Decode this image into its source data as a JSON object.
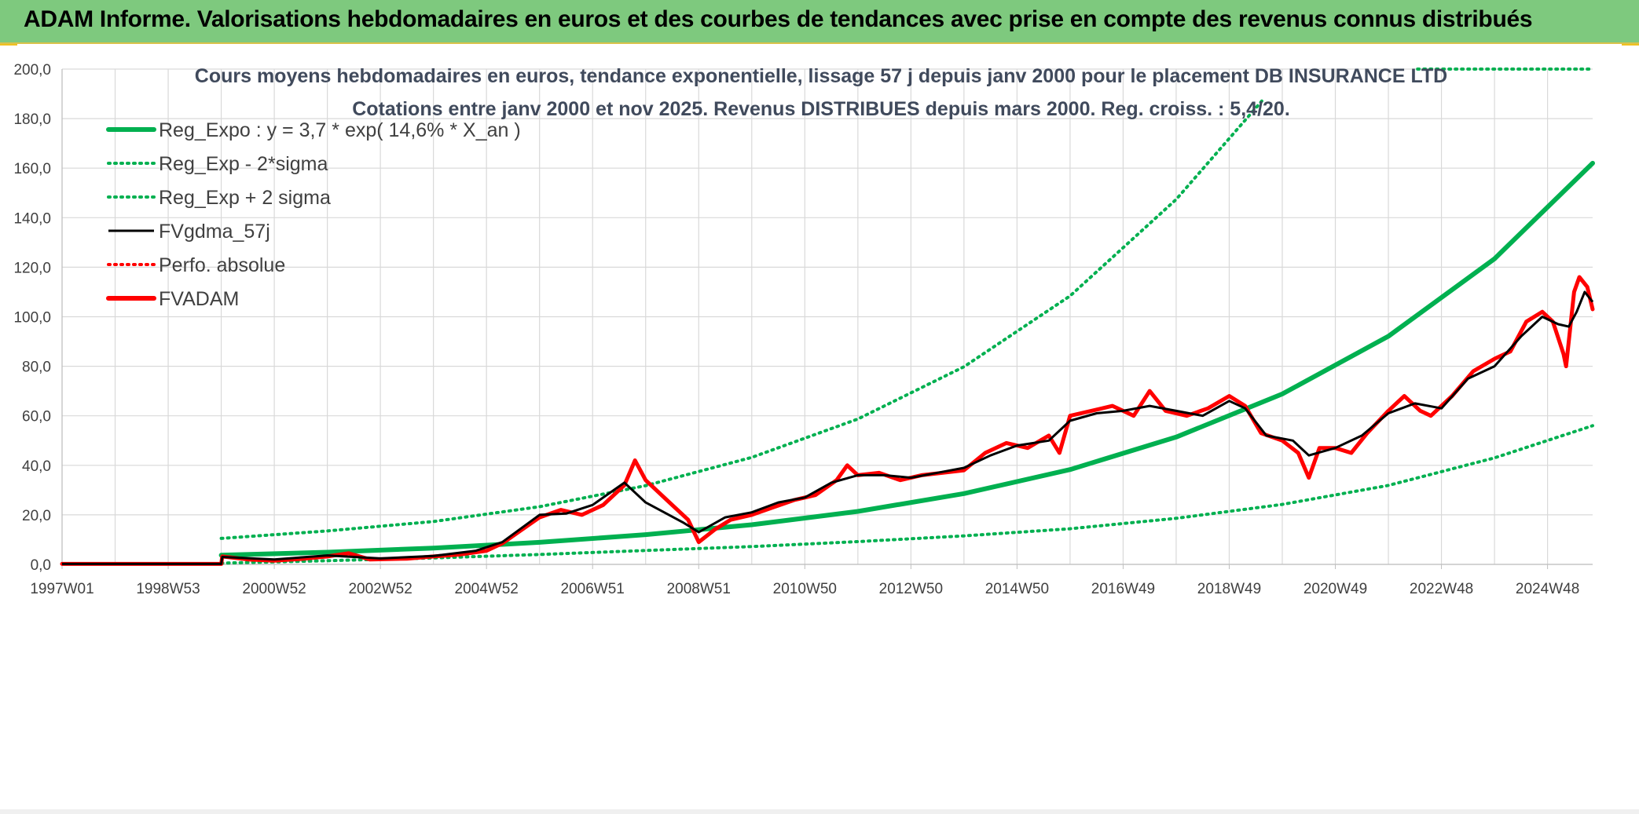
{
  "header": {
    "title": "ADAM Informe. Valorisations hebdomadaires en euros et des courbes de tendances avec prise en compte des revenus connus distribués"
  },
  "chart_data": {
    "type": "line",
    "title": "Cours moyens hebdomadaires en euros, tendance exponentielle, lissage 57 j depuis janv 2000 pour le placement DB INSURANCE LTD",
    "subtitle": "Cotations entre janv 2000 et nov 2025. Revenus DISTRIBUES depuis mars 2000. Reg. croiss. : 5,4/20.",
    "xlabel": "",
    "ylabel": "",
    "ylim": [
      0,
      200
    ],
    "xlim": [
      1997.0,
      2025.85
    ],
    "y_ticks": [
      "0,0",
      "20,0",
      "40,0",
      "60,0",
      "80,0",
      "100,0",
      "120,0",
      "140,0",
      "160,0",
      "180,0",
      "200,0"
    ],
    "x_ticks": [
      {
        "label": "1997W01",
        "x": 1997.0
      },
      {
        "label": "1998W53",
        "x": 1999.0
      },
      {
        "label": "2000W52",
        "x": 2001.0
      },
      {
        "label": "2002W52",
        "x": 2003.0
      },
      {
        "label": "2004W52",
        "x": 2005.0
      },
      {
        "label": "2006W51",
        "x": 2007.0
      },
      {
        "label": "2008W51",
        "x": 2009.0
      },
      {
        "label": "2010W50",
        "x": 2011.0
      },
      {
        "label": "2012W50",
        "x": 2013.0
      },
      {
        "label": "2014W50",
        "x": 2015.0
      },
      {
        "label": "2016W49",
        "x": 2017.0
      },
      {
        "label": "2018W49",
        "x": 2019.0
      },
      {
        "label": "2020W49",
        "x": 2021.0
      },
      {
        "label": "2022W48",
        "x": 2023.0
      },
      {
        "label": "2024W48",
        "x": 2025.0
      }
    ],
    "grid": true,
    "legend_position": "top-left",
    "series": [
      {
        "name": "Reg_Expo : y = 3,7 * exp( 14,6% *  X_an )",
        "style": "solid-thick",
        "color": "#00b050",
        "points": [
          [
            2000.0,
            3.7
          ],
          [
            2002.0,
            4.9
          ],
          [
            2004.0,
            6.6
          ],
          [
            2006.0,
            8.9
          ],
          [
            2008.0,
            12.0
          ],
          [
            2010.0,
            16.0
          ],
          [
            2012.0,
            21.4
          ],
          [
            2014.0,
            28.6
          ],
          [
            2016.0,
            38.3
          ],
          [
            2018.0,
            51.4
          ],
          [
            2020.0,
            68.8
          ],
          [
            2022.0,
            92.1
          ],
          [
            2024.0,
            123.4
          ],
          [
            2025.85,
            162.0
          ]
        ]
      },
      {
        "name": "Reg_Exp - 2*sigma",
        "style": "dotted",
        "color": "#00b050",
        "points": [
          [
            2000.0,
            0.5
          ],
          [
            2002.0,
            1.5
          ],
          [
            2004.0,
            2.6
          ],
          [
            2006.0,
            4.0
          ],
          [
            2008.0,
            5.6
          ],
          [
            2010.0,
            7.2
          ],
          [
            2012.0,
            9.2
          ],
          [
            2014.0,
            11.5
          ],
          [
            2016.0,
            14.4
          ],
          [
            2018.0,
            18.6
          ],
          [
            2020.0,
            24.2
          ],
          [
            2022.0,
            31.9
          ],
          [
            2024.0,
            43.0
          ],
          [
            2025.85,
            56.0
          ]
        ]
      },
      {
        "name": "Reg_Exp + 2 sigma",
        "style": "dotted",
        "color": "#00b050",
        "points": [
          [
            2000.0,
            10.5
          ],
          [
            2002.0,
            13.5
          ],
          [
            2004.0,
            17.3
          ],
          [
            2006.0,
            23.3
          ],
          [
            2008.0,
            31.8
          ],
          [
            2010.0,
            43.2
          ],
          [
            2012.0,
            58.7
          ],
          [
            2014.0,
            79.8
          ],
          [
            2016.0,
            108.4
          ],
          [
            2018.0,
            147.4
          ],
          [
            2019.65,
            188.0
          ]
        ],
        "plateau": {
          "value": 200,
          "from": 2022.55,
          "to": 2025.85
        }
      },
      {
        "name": "FVgdma_57j",
        "style": "solid",
        "color": "#000000",
        "points": [
          [
            1997.0,
            0.2
          ],
          [
            2000.0,
            0.2
          ],
          [
            2000.02,
            3.0
          ],
          [
            2001.0,
            2.0
          ],
          [
            2002.0,
            3.6
          ],
          [
            2003.0,
            2.4
          ],
          [
            2004.0,
            3.4
          ],
          [
            2004.8,
            5.5
          ],
          [
            2005.3,
            9.0
          ],
          [
            2006.0,
            20.0
          ],
          [
            2006.5,
            20.5
          ],
          [
            2007.0,
            24.0
          ],
          [
            2007.6,
            33.0
          ],
          [
            2008.0,
            25.0
          ],
          [
            2008.7,
            17.0
          ],
          [
            2009.0,
            13.0
          ],
          [
            2009.5,
            19.0
          ],
          [
            2010.0,
            21.0
          ],
          [
            2010.5,
            25.0
          ],
          [
            2011.0,
            27.0
          ],
          [
            2011.5,
            33.0
          ],
          [
            2012.0,
            36.0
          ],
          [
            2012.5,
            36.0
          ],
          [
            2013.0,
            35.0
          ],
          [
            2013.5,
            37.0
          ],
          [
            2014.0,
            39.0
          ],
          [
            2014.5,
            44.0
          ],
          [
            2015.0,
            48.0
          ],
          [
            2015.6,
            50.0
          ],
          [
            2016.0,
            58.0
          ],
          [
            2016.5,
            61.0
          ],
          [
            2017.0,
            62.0
          ],
          [
            2017.5,
            64.0
          ],
          [
            2018.0,
            62.0
          ],
          [
            2018.5,
            60.0
          ],
          [
            2019.0,
            66.0
          ],
          [
            2019.3,
            63.0
          ],
          [
            2019.7,
            52.0
          ],
          [
            2020.2,
            50.0
          ],
          [
            2020.5,
            44.0
          ],
          [
            2021.0,
            47.0
          ],
          [
            2021.5,
            52.0
          ],
          [
            2022.0,
            61.0
          ],
          [
            2022.5,
            65.0
          ],
          [
            2023.0,
            63.0
          ],
          [
            2023.5,
            75.0
          ],
          [
            2024.0,
            80.0
          ],
          [
            2024.5,
            92.0
          ],
          [
            2024.9,
            100.0
          ],
          [
            2025.2,
            97.0
          ],
          [
            2025.4,
            96.0
          ],
          [
            2025.55,
            102.0
          ],
          [
            2025.7,
            110.0
          ],
          [
            2025.85,
            106.0
          ]
        ]
      },
      {
        "name": "Perfo. absolue",
        "style": "dotted",
        "color": "#ff0000",
        "points": []
      },
      {
        "name": "FVADAM",
        "style": "solid-thick",
        "color": "#ff0000",
        "points": [
          [
            1997.0,
            0.2
          ],
          [
            2000.0,
            0.2
          ],
          [
            2000.02,
            3.2
          ],
          [
            2000.5,
            2.0
          ],
          [
            2001.0,
            1.5
          ],
          [
            2001.5,
            2.2
          ],
          [
            2002.0,
            3.2
          ],
          [
            2002.4,
            4.5
          ],
          [
            2002.8,
            2.0
          ],
          [
            2003.5,
            2.3
          ],
          [
            2004.0,
            3.2
          ],
          [
            2004.5,
            4.0
          ],
          [
            2005.0,
            5.5
          ],
          [
            2005.3,
            8.5
          ],
          [
            2005.6,
            13.0
          ],
          [
            2006.0,
            19.0
          ],
          [
            2006.4,
            22.0
          ],
          [
            2006.8,
            20.0
          ],
          [
            2007.2,
            24.0
          ],
          [
            2007.6,
            32.0
          ],
          [
            2007.8,
            42.0
          ],
          [
            2008.0,
            34.0
          ],
          [
            2008.4,
            26.0
          ],
          [
            2008.8,
            18.0
          ],
          [
            2009.0,
            9.0
          ],
          [
            2009.3,
            14.0
          ],
          [
            2009.6,
            18.0
          ],
          [
            2010.0,
            20.0
          ],
          [
            2010.4,
            23.0
          ],
          [
            2010.8,
            26.0
          ],
          [
            2011.2,
            28.0
          ],
          [
            2011.6,
            34.0
          ],
          [
            2011.8,
            40.0
          ],
          [
            2012.0,
            36.0
          ],
          [
            2012.4,
            37.0
          ],
          [
            2012.8,
            34.0
          ],
          [
            2013.2,
            36.0
          ],
          [
            2013.6,
            37.0
          ],
          [
            2014.0,
            38.0
          ],
          [
            2014.4,
            45.0
          ],
          [
            2014.8,
            49.0
          ],
          [
            2015.2,
            47.0
          ],
          [
            2015.6,
            52.0
          ],
          [
            2015.8,
            45.0
          ],
          [
            2016.0,
            60.0
          ],
          [
            2016.4,
            62.0
          ],
          [
            2016.8,
            64.0
          ],
          [
            2017.2,
            60.0
          ],
          [
            2017.5,
            70.0
          ],
          [
            2017.8,
            62.0
          ],
          [
            2018.2,
            60.0
          ],
          [
            2018.6,
            63.0
          ],
          [
            2019.0,
            68.0
          ],
          [
            2019.3,
            64.0
          ],
          [
            2019.6,
            53.0
          ],
          [
            2020.0,
            50.0
          ],
          [
            2020.3,
            45.0
          ],
          [
            2020.5,
            35.0
          ],
          [
            2020.7,
            47.0
          ],
          [
            2021.0,
            47.0
          ],
          [
            2021.3,
            45.0
          ],
          [
            2021.6,
            53.0
          ],
          [
            2022.0,
            62.0
          ],
          [
            2022.3,
            68.0
          ],
          [
            2022.6,
            62.0
          ],
          [
            2022.8,
            60.0
          ],
          [
            2023.2,
            68.0
          ],
          [
            2023.6,
            78.0
          ],
          [
            2024.0,
            83.0
          ],
          [
            2024.3,
            86.0
          ],
          [
            2024.6,
            98.0
          ],
          [
            2024.9,
            102.0
          ],
          [
            2025.1,
            98.0
          ],
          [
            2025.3,
            85.0
          ],
          [
            2025.35,
            80.0
          ],
          [
            2025.5,
            110.0
          ],
          [
            2025.6,
            116.0
          ],
          [
            2025.75,
            112.0
          ],
          [
            2025.85,
            103.0
          ]
        ]
      }
    ]
  }
}
